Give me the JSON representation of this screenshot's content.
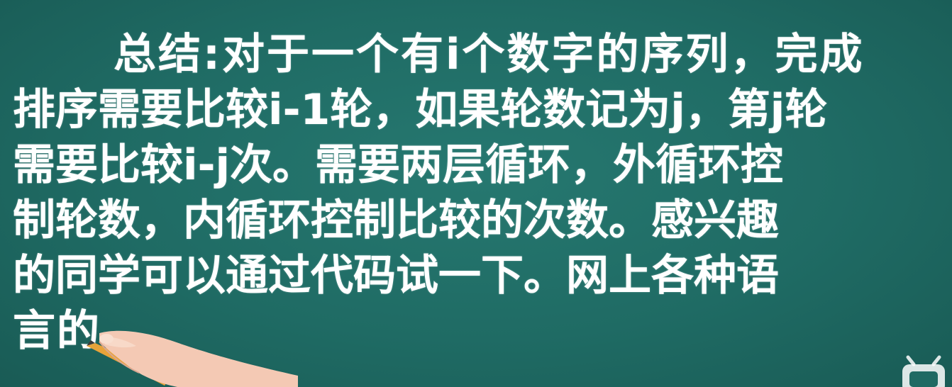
{
  "lesson": {
    "lines": [
      "总结:对于一个有i个数字的序列，完成",
      "排序需要比较i-1轮，如果轮数记为j，第j轮",
      "需要比较i-j次。需要两层循环，外循环控",
      "制轮数，内循环控制比较的次数。感兴趣",
      "的同学可以通过代码试一下。网上各种语",
      "言的"
    ]
  },
  "colors": {
    "board": "#1f6a63",
    "chalk": "#ffffff",
    "skin": "#f4c9b4",
    "pencil": "#e8a33a"
  },
  "icons": {
    "hand": "hand-holding-pencil-icon",
    "watermark": "tv-logo-icon"
  }
}
